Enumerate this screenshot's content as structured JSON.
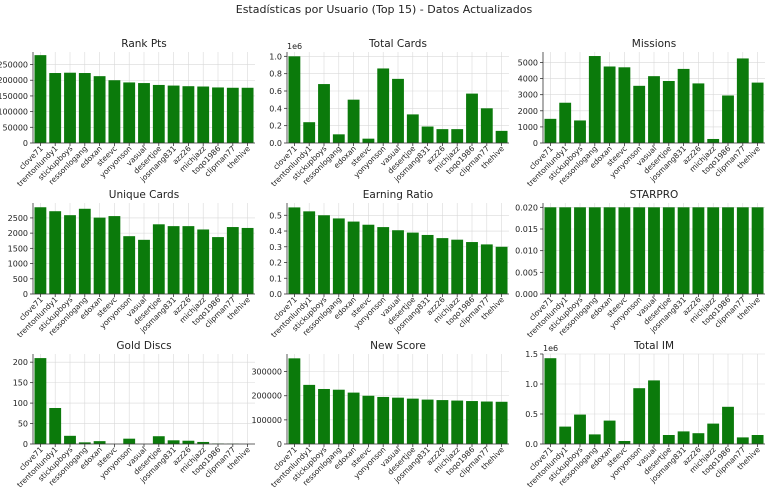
{
  "figure": {
    "suptitle": "Estadísticas por Usuario (Top 15) - Datos Actualizados",
    "bar_color": "#0b7a0b",
    "grid_color": "#d9d9d9"
  },
  "chart_data": [
    {
      "type": "bar",
      "title": "Rank Pts",
      "categories": [
        "clove71",
        "trentonlundy1",
        "stickupboys",
        "ressonlogang",
        "edoxan",
        "steevc",
        "yonyonson",
        "vasual",
        "desertjoe",
        "josmang831",
        "azz26",
        "michjazz",
        "toqo1986",
        "clipman77",
        "thehive"
      ],
      "values": [
        280000,
        223000,
        224000,
        223000,
        213000,
        200000,
        193000,
        191000,
        185000,
        183000,
        181000,
        180000,
        177000,
        176000,
        176000
      ],
      "ylim": [
        0,
        290000
      ],
      "yticks": [
        0,
        50000,
        100000,
        150000,
        200000,
        250000
      ],
      "multiplier": "",
      "grid": true
    },
    {
      "type": "bar",
      "title": "Total Cards",
      "categories": [
        "clove71",
        "trentonlundy1",
        "stickupboys",
        "ressonlogang",
        "edoxan",
        "steevc",
        "yonyonson",
        "vasual",
        "desertjoe",
        "josmang831",
        "azz26",
        "michjazz",
        "toqo1986",
        "clipman77",
        "thehive"
      ],
      "values": [
        1.0,
        0.24,
        0.68,
        0.1,
        0.5,
        0.05,
        0.86,
        0.74,
        0.33,
        0.19,
        0.16,
        0.16,
        0.57,
        0.4,
        0.14
      ],
      "ylim": [
        0,
        1.05
      ],
      "yticks": [
        0.0,
        0.2,
        0.4,
        0.6,
        0.8,
        1.0
      ],
      "multiplier": "1e6",
      "grid": true
    },
    {
      "type": "bar",
      "title": "Missions",
      "categories": [
        "clove71",
        "trentonlundy1",
        "stickupboys",
        "ressonlogang",
        "edoxan",
        "steevc",
        "yonyonson",
        "vasual",
        "desertjoe",
        "josmang831",
        "azz26",
        "michjazz",
        "toqo1986",
        "clipman77",
        "thehive"
      ],
      "values": [
        1500,
        2500,
        1400,
        5400,
        4750,
        4700,
        3550,
        4150,
        3850,
        4600,
        3700,
        250,
        2950,
        5250,
        3750
      ],
      "ylim": [
        0,
        5650
      ],
      "yticks": [
        0,
        1000,
        2000,
        3000,
        4000,
        5000
      ],
      "multiplier": "",
      "grid": true
    },
    {
      "type": "bar",
      "title": "Unique Cards",
      "categories": [
        "clove71",
        "trentonlundy1",
        "stickupboys",
        "ressonlogang",
        "edoxan",
        "steevc",
        "yonyonson",
        "vasual",
        "desertjoe",
        "josmang831",
        "azz26",
        "michjazz",
        "toqo1986",
        "clipman77",
        "thehive"
      ],
      "values": [
        2850,
        2720,
        2590,
        2800,
        2510,
        2560,
        1900,
        1780,
        2290,
        2230,
        2230,
        2120,
        1870,
        2200,
        2170
      ],
      "ylim": [
        0,
        2990
      ],
      "yticks": [
        0,
        500,
        1000,
        1500,
        2000,
        2500
      ],
      "multiplier": "",
      "grid": true
    },
    {
      "type": "bar",
      "title": "Earning Ratio",
      "categories": [
        "clove71",
        "trentonlundy1",
        "stickupboys",
        "ressonlogang",
        "edoxan",
        "steevc",
        "yonyonson",
        "vasual",
        "desertjoe",
        "josmang831",
        "azz26",
        "michjazz",
        "toqo1986",
        "clipman77",
        "thehive"
      ],
      "values": [
        0.55,
        0.525,
        0.5,
        0.48,
        0.46,
        0.44,
        0.425,
        0.405,
        0.39,
        0.375,
        0.355,
        0.345,
        0.33,
        0.315,
        0.3
      ],
      "ylim": [
        0,
        0.578
      ],
      "yticks": [
        0.0,
        0.1,
        0.2,
        0.3,
        0.4,
        0.5
      ],
      "multiplier": "",
      "grid": true
    },
    {
      "type": "bar",
      "title": "STARPRO",
      "categories": [
        "clove71",
        "trentonlundy1",
        "stickupboys",
        "ressonlogang",
        "edoxan",
        "steevc",
        "yonyonson",
        "vasual",
        "desertjoe",
        "josmang831",
        "azz26",
        "michjazz",
        "toqo1986",
        "clipman77",
        "thehive"
      ],
      "values": [
        0.02,
        0.02,
        0.02,
        0.02,
        0.02,
        0.02,
        0.02,
        0.02,
        0.02,
        0.02,
        0.02,
        0.02,
        0.02,
        0.02,
        0.02
      ],
      "ylim": [
        0,
        0.021
      ],
      "yticks": [
        0.0,
        0.005,
        0.01,
        0.015,
        0.02
      ],
      "multiplier": "",
      "grid": true
    },
    {
      "type": "bar",
      "title": "Gold Discs",
      "categories": [
        "clove71",
        "trentonlundy1",
        "stickupboys",
        "ressonlogang",
        "edoxan",
        "steevc",
        "yonyonson",
        "vasual",
        "desertjoe",
        "josmang831",
        "azz26",
        "michjazz",
        "toqo1986",
        "clipman77",
        "thehive"
      ],
      "values": [
        210,
        88,
        20,
        4,
        7,
        0,
        13,
        0,
        19,
        9,
        8,
        5,
        1,
        0.5,
        0
      ],
      "ylim": [
        0,
        220
      ],
      "yticks": [
        0,
        50,
        100,
        150,
        200
      ],
      "multiplier": "",
      "grid": true
    },
    {
      "type": "bar",
      "title": "New Score",
      "categories": [
        "clove71",
        "trentonlundy1",
        "stickupboys",
        "ressonlogang",
        "edoxan",
        "steevc",
        "yonyonson",
        "vasual",
        "desertjoe",
        "josmang831",
        "azz26",
        "michjazz",
        "toqo1986",
        "clipman77",
        "thehive"
      ],
      "values": [
        355000,
        245000,
        228000,
        225000,
        213000,
        200000,
        195000,
        192000,
        188000,
        184000,
        182000,
        180000,
        178000,
        176000,
        175000
      ],
      "ylim": [
        0,
        373000
      ],
      "yticks": [
        0,
        100000,
        200000,
        300000
      ],
      "multiplier": "",
      "grid": true
    },
    {
      "type": "bar",
      "title": "Total IM",
      "categories": [
        "clove71",
        "trentonlundy1",
        "stickupboys",
        "ressonlogang",
        "edoxan",
        "steevc",
        "yonyonson",
        "vasual",
        "desertjoe",
        "josmang831",
        "azz26",
        "michjazz",
        "toqo1986",
        "clipman77",
        "thehive"
      ],
      "values": [
        1.43,
        0.29,
        0.49,
        0.16,
        0.39,
        0.05,
        0.93,
        1.06,
        0.15,
        0.21,
        0.18,
        0.34,
        0.62,
        0.11,
        0.15
      ],
      "ylim": [
        0,
        1.5
      ],
      "yticks": [
        0.0,
        0.5,
        1.0,
        1.5
      ],
      "multiplier": "1e6",
      "grid": true
    }
  ]
}
